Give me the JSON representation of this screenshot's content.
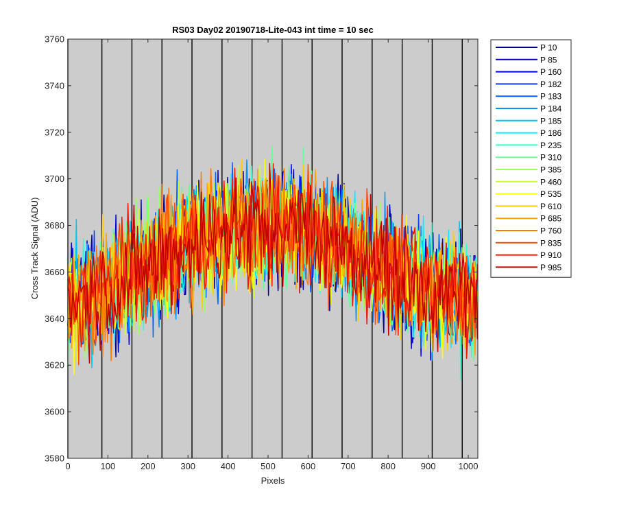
{
  "chart_data": {
    "type": "line",
    "title": "RS03 Day02 20190718-Lite-043 int time = 10 sec",
    "xlabel": "Pixels",
    "ylabel": "Cross Track Signal (ADU)",
    "xlim": [
      0,
      1024
    ],
    "ylim": [
      3580,
      3760
    ],
    "xticks": [
      0,
      100,
      200,
      300,
      400,
      500,
      600,
      700,
      800,
      900,
      1000
    ],
    "yticks": [
      3580,
      3600,
      3620,
      3640,
      3660,
      3680,
      3700,
      3720,
      3740,
      3760
    ],
    "background_color": "#cccccc",
    "grid": false,
    "legend_position": "outside-right",
    "vertical_lines_x": [
      0,
      85,
      160,
      235,
      310,
      385,
      460,
      535,
      610,
      685,
      760,
      835,
      910,
      985
    ],
    "profile": {
      "shape": "arch",
      "x": [
        0,
        100,
        200,
        300,
        400,
        512,
        600,
        700,
        800,
        900,
        1024
      ],
      "mean": [
        3648,
        3653,
        3662,
        3672,
        3678,
        3680,
        3678,
        3671,
        3660,
        3652,
        3648
      ],
      "noise_amplitude": 26
    },
    "series": [
      {
        "name": "P 10",
        "color": "#00008f"
      },
      {
        "name": "P 85",
        "color": "#0000b8"
      },
      {
        "name": "P 160",
        "color": "#0000e0"
      },
      {
        "name": "P 182",
        "color": "#0a3cff"
      },
      {
        "name": "P 183",
        "color": "#0064ff"
      },
      {
        "name": "P 184",
        "color": "#0095ff"
      },
      {
        "name": "P 185",
        "color": "#00c4ff"
      },
      {
        "name": "P 186",
        "color": "#00f0ff"
      },
      {
        "name": "P 235",
        "color": "#33ffcc"
      },
      {
        "name": "P 310",
        "color": "#66ff99"
      },
      {
        "name": "P 385",
        "color": "#99ff66"
      },
      {
        "name": "P 460",
        "color": "#ccff33"
      },
      {
        "name": "P 535",
        "color": "#ffff00"
      },
      {
        "name": "P 610",
        "color": "#ffd000"
      },
      {
        "name": "P 685",
        "color": "#ffa500"
      },
      {
        "name": "P 760",
        "color": "#ff7a00"
      },
      {
        "name": "P 835",
        "color": "#ff4a00"
      },
      {
        "name": "P 910",
        "color": "#f01800"
      },
      {
        "name": "P 985",
        "color": "#c00000"
      }
    ]
  }
}
